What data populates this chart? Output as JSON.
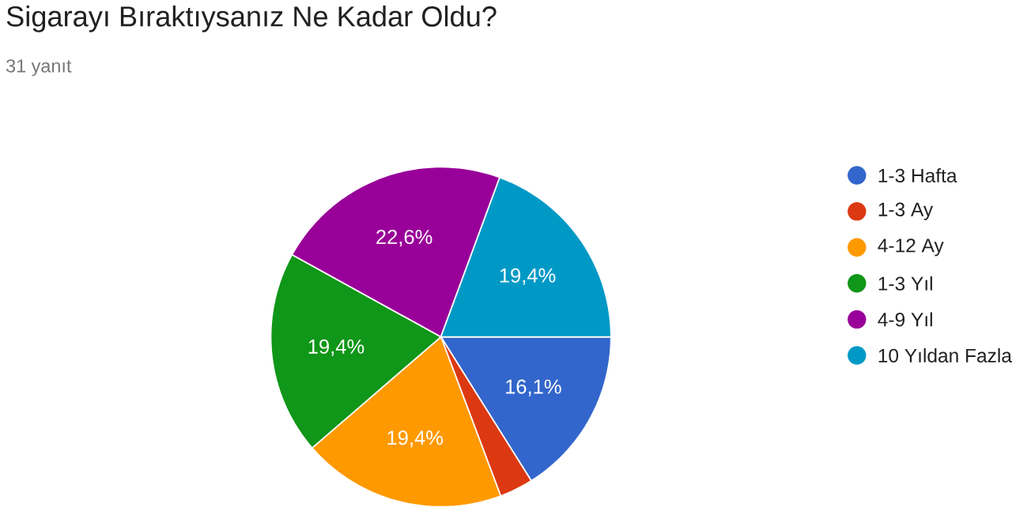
{
  "chart_data": {
    "type": "pie",
    "title": "Sigarayı Bıraktıysanız Ne Kadar Oldu?",
    "subtitle": "31 yanıt",
    "categories": [
      "1-3 Hafta",
      "1-3 Ay",
      "4-12 Ay",
      "1-3 Yıl",
      "4-9 Yıl",
      "10 Yıldan Fazla"
    ],
    "values": [
      16.1,
      3.2,
      19.4,
      19.4,
      22.6,
      19.4
    ],
    "colors": [
      "#3366cc",
      "#dc3912",
      "#ff9900",
      "#109618",
      "#990099",
      "#0099c6"
    ],
    "value_labels": [
      "16,1%",
      null,
      "19,4%",
      "19,4%",
      "22,6%",
      "19,4%"
    ],
    "legend": "right"
  }
}
